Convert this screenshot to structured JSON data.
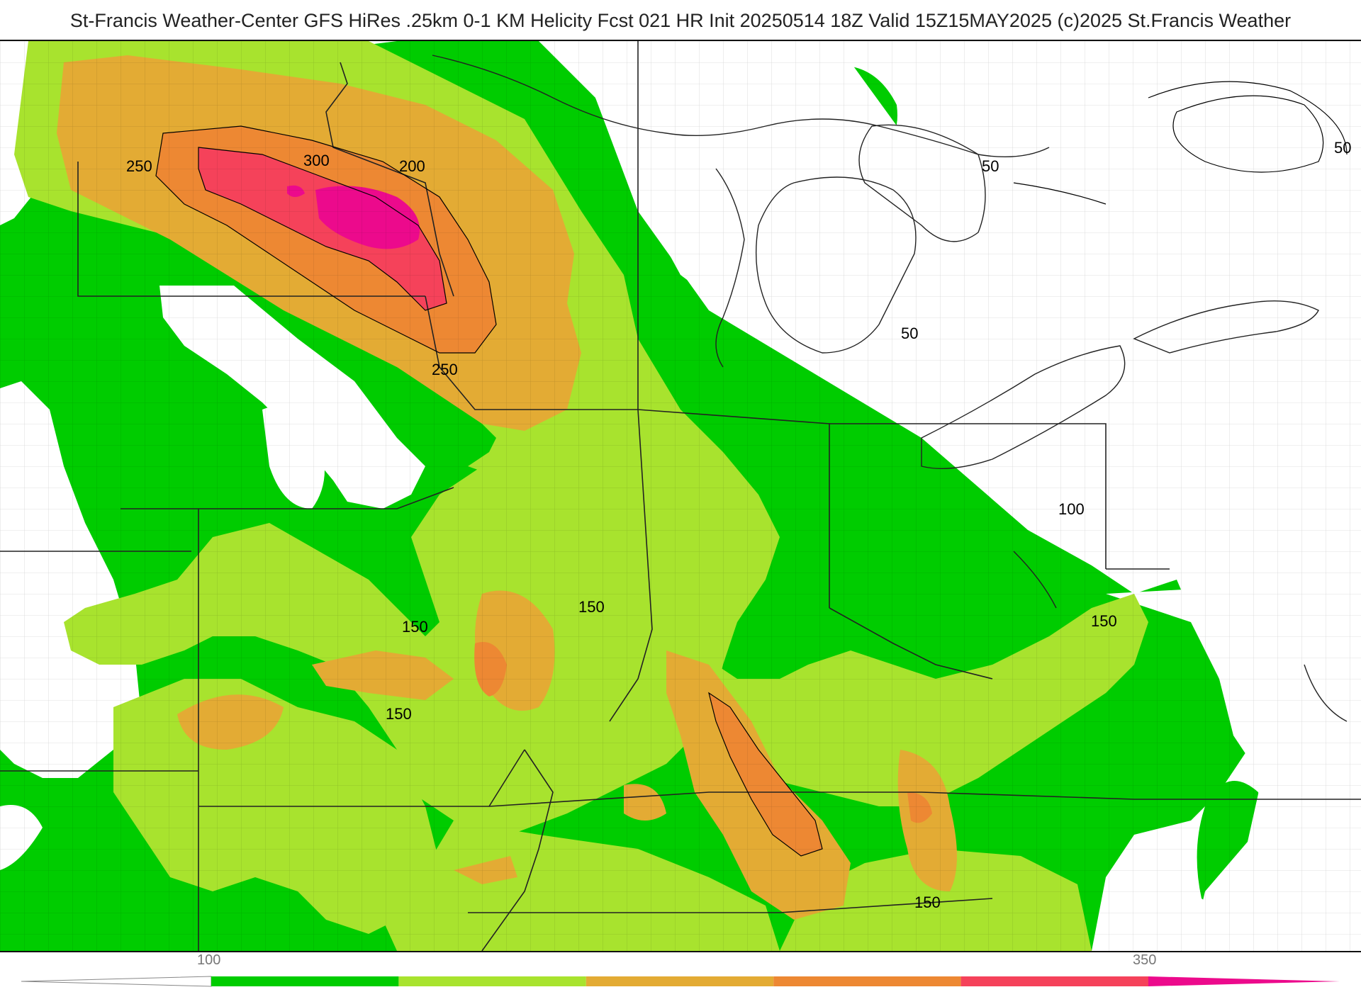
{
  "header": {
    "title": "St-Francis Weather-Center GFS HiRes .25km 0-1 KM Helicity Fcst 021 HR Init 20250514 18Z  Valid 15Z15MAY2025    (c)2025 St.Francis Weather"
  },
  "map": {
    "contour_labels": [
      {
        "text": "250",
        "id": "contour-label-250-nw"
      },
      {
        "text": "300",
        "id": "contour-label-300"
      },
      {
        "text": "200",
        "id": "contour-label-200"
      },
      {
        "text": "250",
        "id": "contour-label-250-s"
      },
      {
        "text": "50",
        "id": "contour-label-50-mi"
      },
      {
        "text": "50",
        "id": "contour-label-50-ne"
      },
      {
        "text": "50",
        "id": "contour-label-50-oh"
      },
      {
        "text": "100",
        "id": "contour-label-100"
      },
      {
        "text": "150",
        "id": "contour-label-150-in"
      },
      {
        "text": "150",
        "id": "contour-label-150-mo"
      },
      {
        "text": "150",
        "id": "contour-label-150-ar"
      },
      {
        "text": "150",
        "id": "contour-label-150-va"
      },
      {
        "text": "150",
        "id": "contour-label-150-tn"
      }
    ]
  },
  "colorbar": {
    "tick_labels": [
      "100",
      "350"
    ],
    "colors": [
      "#00cc00",
      "#a8e32e",
      "#e3ab34",
      "#ed8833",
      "#f5425a",
      "#ec0a8c"
    ]
  }
}
